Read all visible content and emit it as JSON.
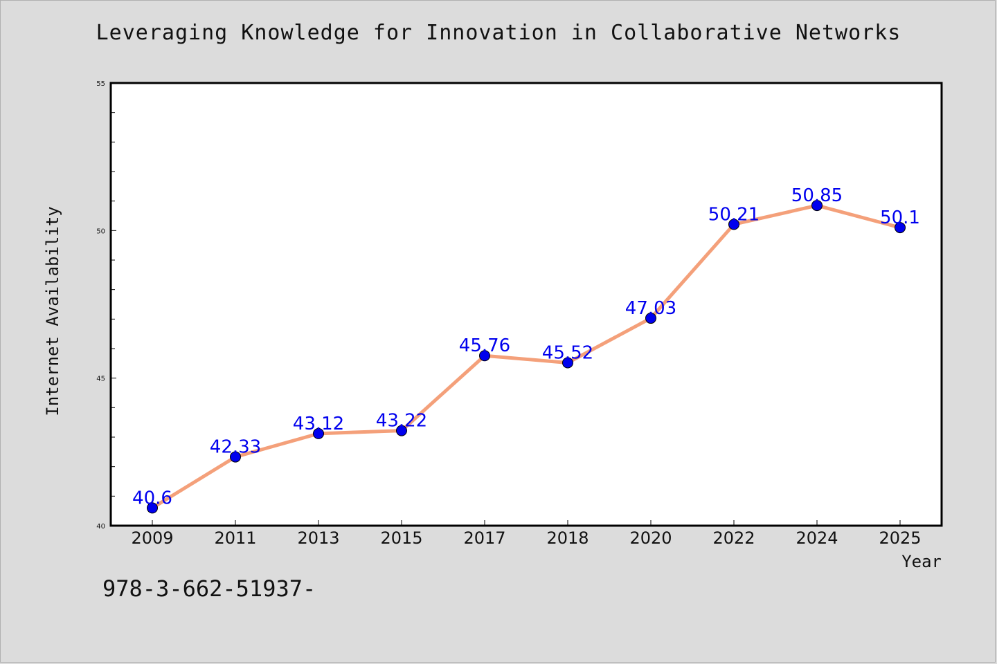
{
  "footnote": "978-3-662-51937-",
  "chart_data": {
    "type": "line",
    "title": "Leveraging Knowledge for Innovation in Collaborative Networks",
    "xlabel": "Year",
    "ylabel": "Internet Availability",
    "categories": [
      "2009",
      "2011",
      "2013",
      "2015",
      "2017",
      "2018",
      "2020",
      "2022",
      "2024",
      "2025"
    ],
    "series": [
      {
        "values": [
          40.6,
          42.33,
          43.12,
          43.22,
          45.76,
          45.52,
          47.03,
          50.21,
          50.85,
          50.1
        ],
        "labels": [
          "40.6",
          "42.33",
          "43.12",
          "43.22",
          "45.76",
          "45.52",
          "47.03",
          "50.21",
          "50.85",
          "50.1"
        ]
      }
    ],
    "ylim": [
      40,
      55
    ],
    "yticks": [
      "40",
      "45",
      "50",
      "55"
    ],
    "grid": false,
    "line_color": "#f4a07a",
    "marker_color": "#0000ee",
    "label_color": "#0000ee"
  }
}
